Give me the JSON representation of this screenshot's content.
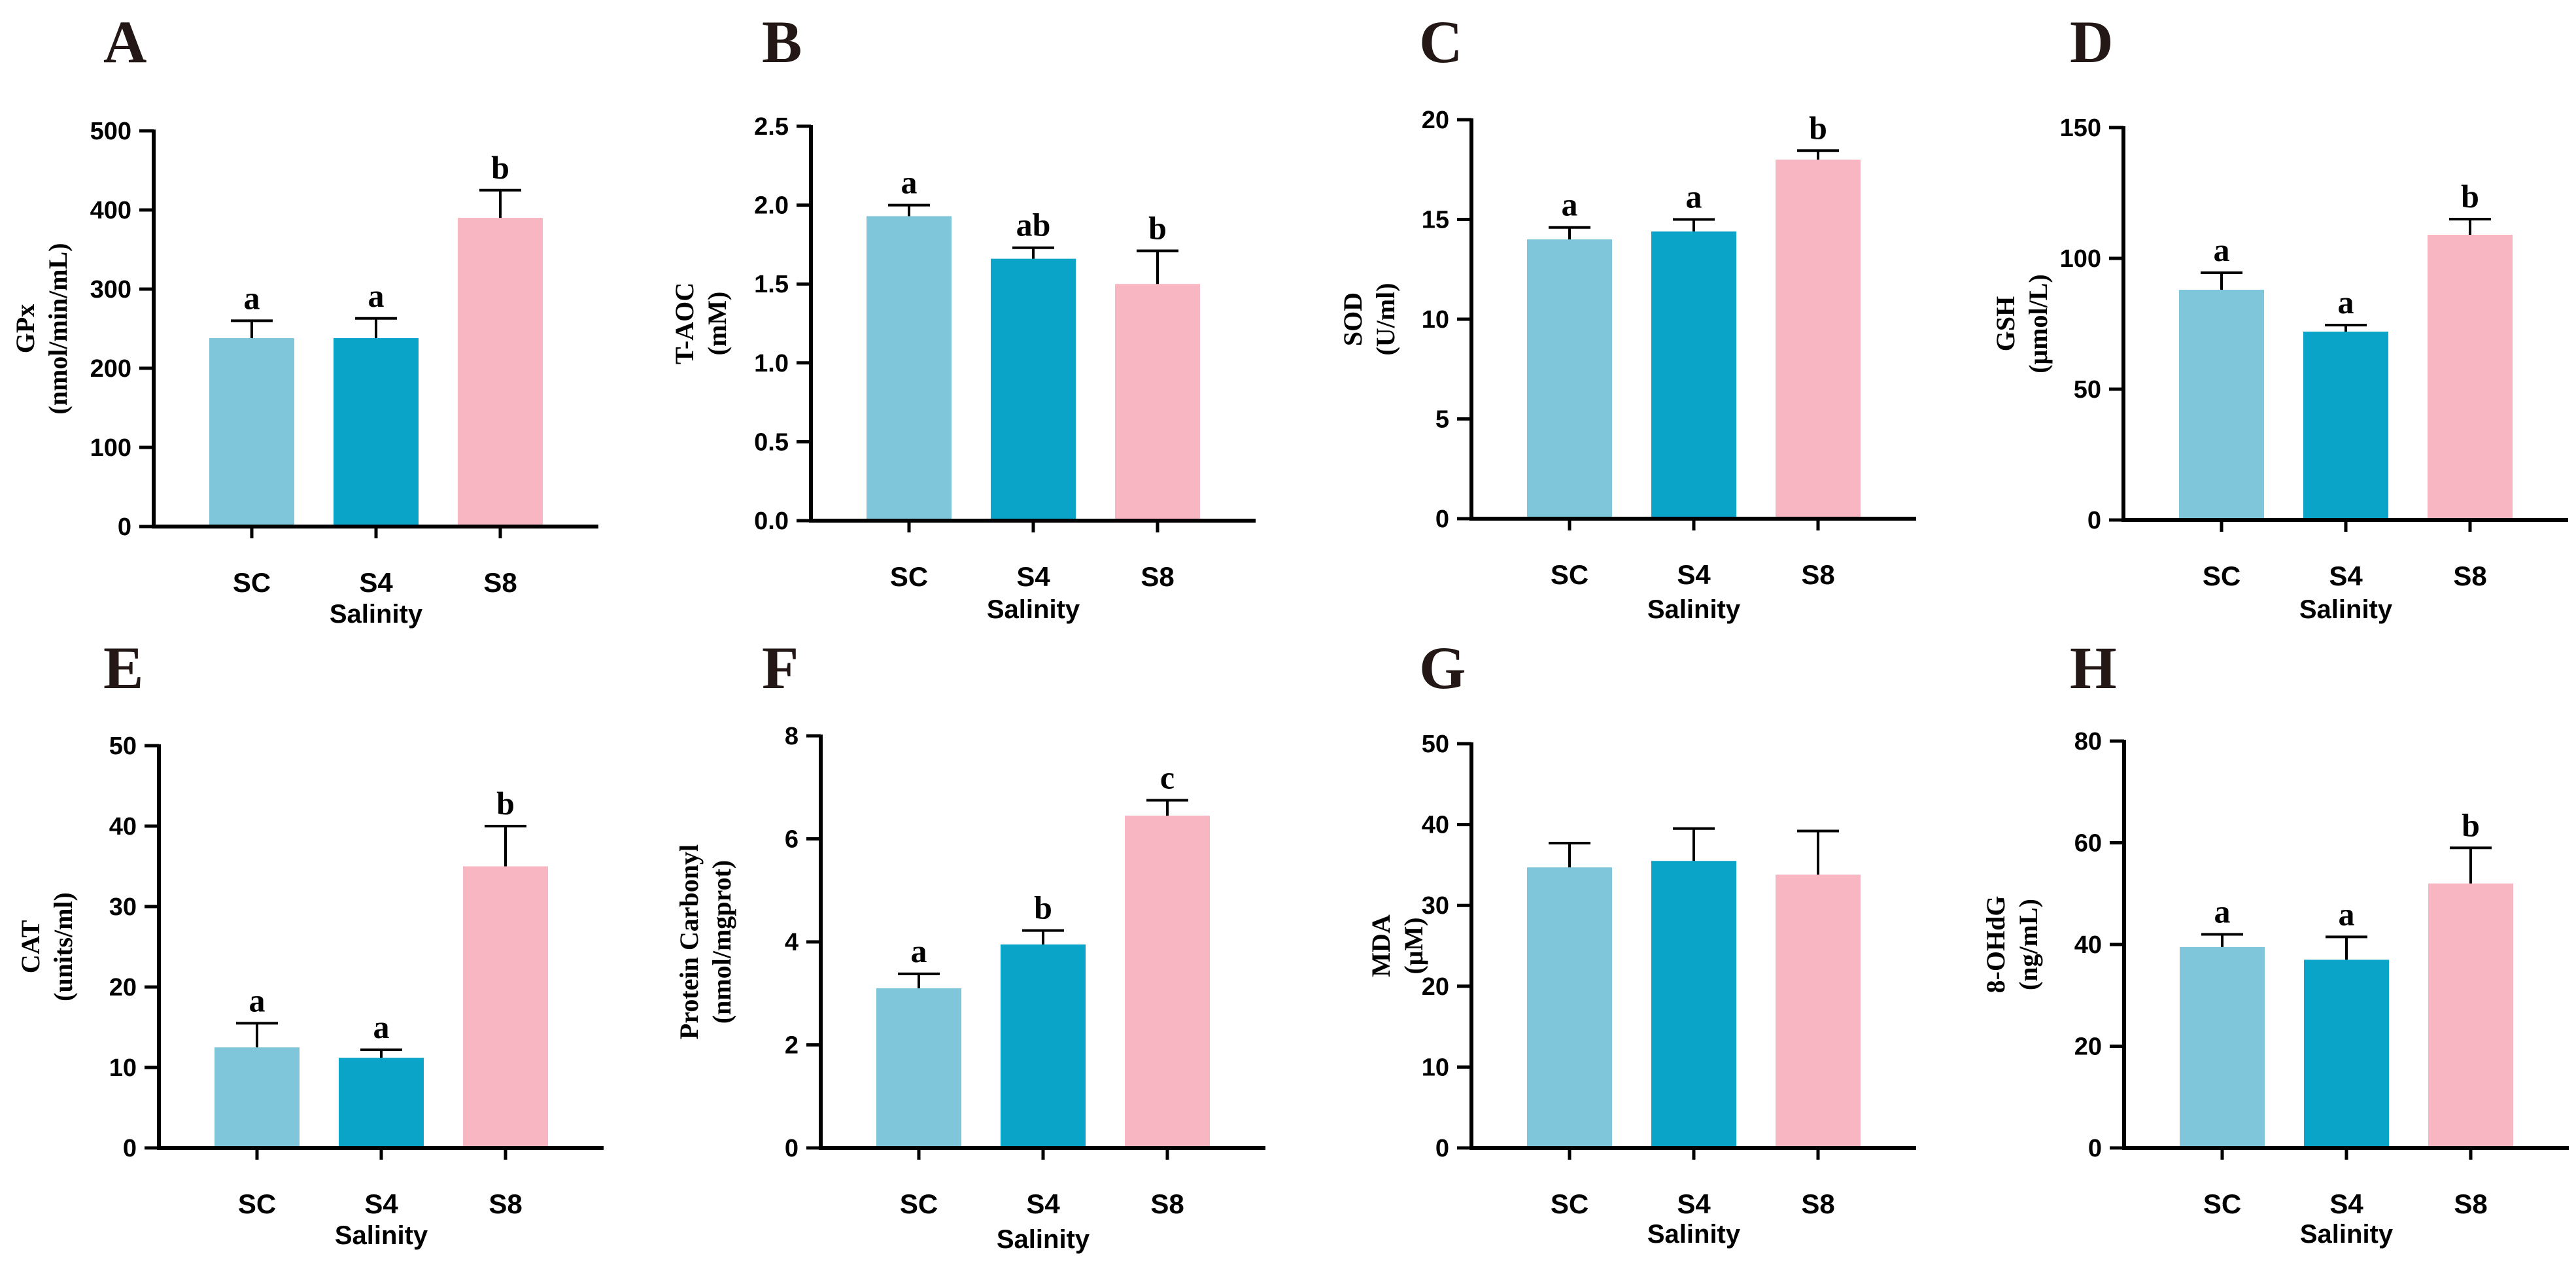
{
  "figure": {
    "bar_colors": [
      "#7fc6db",
      "#0aa4c8",
      "#f8b5c2"
    ],
    "axis_color": "#000000"
  },
  "chart_data": [
    {
      "type": "bar",
      "panel": "A",
      "categories": [
        "SC",
        "S4",
        "S8"
      ],
      "values": [
        238,
        238,
        390
      ],
      "errors": [
        22,
        25,
        35
      ],
      "significance": [
        "a",
        "a",
        "b"
      ],
      "ylabel": [
        "GPx",
        "(nmol/min/mL)"
      ],
      "xlabel": "Salinity",
      "ylim": [
        0,
        500
      ],
      "yticks": [
        0,
        100,
        200,
        300,
        400,
        500
      ],
      "ytick_labels": [
        "0",
        "100",
        "200",
        "300",
        "400",
        "500"
      ]
    },
    {
      "type": "bar",
      "panel": "B",
      "categories": [
        "SC",
        "S4",
        "S8"
      ],
      "values": [
        1.93,
        1.66,
        1.5
      ],
      "errors": [
        0.07,
        0.07,
        0.21
      ],
      "significance": [
        "a",
        "ab",
        "b"
      ],
      "ylabel": [
        "T-AOC",
        "(mM)"
      ],
      "xlabel": "Salinity",
      "ylim": [
        0,
        2.5
      ],
      "yticks": [
        0,
        0.5,
        1.0,
        1.5,
        2.0,
        2.5
      ],
      "ytick_labels": [
        "0.0",
        "0.5",
        "1.0",
        "1.5",
        "2.0",
        "2.5"
      ]
    },
    {
      "type": "bar",
      "panel": "C",
      "categories": [
        "SC",
        "S4",
        "S8"
      ],
      "values": [
        14.0,
        14.4,
        18.0
      ],
      "errors": [
        0.6,
        0.6,
        0.45
      ],
      "significance": [
        "a",
        "a",
        "b"
      ],
      "ylabel": [
        "SOD",
        "(U/ml)"
      ],
      "xlabel": "Salinity",
      "ylim": [
        0,
        20
      ],
      "yticks": [
        0,
        5,
        10,
        15,
        20
      ],
      "ytick_labels": [
        "0",
        "5",
        "10",
        "15",
        "20"
      ]
    },
    {
      "type": "bar",
      "panel": "D",
      "categories": [
        "SC",
        "S4",
        "S8"
      ],
      "values": [
        88,
        72,
        109
      ],
      "errors": [
        6.5,
        2.5,
        6
      ],
      "significance": [
        "a",
        "a",
        "b"
      ],
      "ylabel": [
        "GSH",
        "(μmol/L)"
      ],
      "xlabel": "Salinity",
      "ylim": [
        0,
        150
      ],
      "yticks": [
        0,
        50,
        100,
        150
      ],
      "ytick_labels": [
        "0",
        "50",
        "100",
        "150"
      ]
    },
    {
      "type": "bar",
      "panel": "E",
      "categories": [
        "SC",
        "S4",
        "S8"
      ],
      "values": [
        12.5,
        11.2,
        35.0
      ],
      "errors": [
        3.0,
        1.0,
        5.0
      ],
      "significance": [
        "a",
        "a",
        "b"
      ],
      "ylabel": [
        "CAT",
        "(units/ml)"
      ],
      "xlabel": "Salinity",
      "ylim": [
        0,
        50
      ],
      "yticks": [
        0,
        10,
        20,
        30,
        40,
        50
      ],
      "ytick_labels": [
        "0",
        "10",
        "20",
        "30",
        "40",
        "50"
      ]
    },
    {
      "type": "bar",
      "panel": "F",
      "categories": [
        "SC",
        "S4",
        "S8"
      ],
      "values": [
        3.1,
        3.95,
        6.45
      ],
      "errors": [
        0.28,
        0.27,
        0.3
      ],
      "significance": [
        "a",
        "b",
        "c"
      ],
      "ylabel": [
        "Protein Carbonyl",
        "(nmol/mgprot)"
      ],
      "xlabel": "Salinity",
      "ylim": [
        0,
        8
      ],
      "yticks": [
        0,
        2,
        4,
        6,
        8
      ],
      "ytick_labels": [
        "0",
        "2",
        "4",
        "6",
        "8"
      ]
    },
    {
      "type": "bar",
      "panel": "G",
      "categories": [
        "SC",
        "S4",
        "S8"
      ],
      "values": [
        34.7,
        35.5,
        33.8
      ],
      "errors": [
        3.0,
        4.0,
        5.4
      ],
      "significance": [
        "",
        "",
        ""
      ],
      "ylabel": [
        "MDA",
        "(μM)"
      ],
      "xlabel": "Salinity",
      "ylim": [
        0,
        50
      ],
      "yticks": [
        0,
        10,
        20,
        30,
        40,
        50
      ],
      "ytick_labels": [
        "0",
        "10",
        "20",
        "30",
        "40",
        "50"
      ]
    },
    {
      "type": "bar",
      "panel": "H",
      "categories": [
        "SC",
        "S4",
        "S8"
      ],
      "values": [
        39.5,
        37.0,
        52.0
      ],
      "errors": [
        2.5,
        4.5,
        7.0
      ],
      "significance": [
        "a",
        "a",
        "b"
      ],
      "ylabel": [
        "8-OHdG",
        "(ng/mL)"
      ],
      "xlabel": "Salinity",
      "ylim": [
        0,
        80
      ],
      "yticks": [
        0,
        20,
        40,
        60,
        80
      ],
      "ytick_labels": [
        "0",
        "20",
        "40",
        "60",
        "80"
      ]
    }
  ]
}
